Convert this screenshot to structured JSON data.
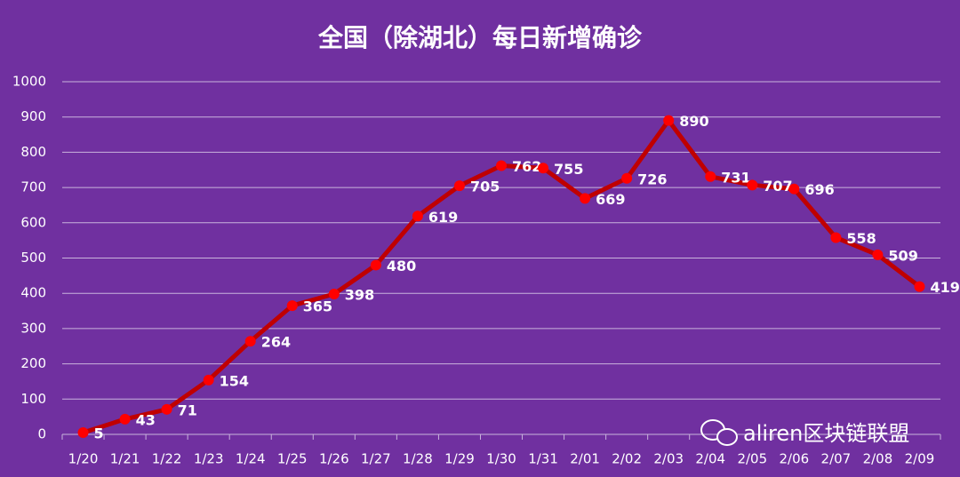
{
  "chart_data": {
    "type": "line",
    "title": "全国（除湖北）每日新增确诊",
    "categories": [
      "1/20",
      "1/21",
      "1/22",
      "1/23",
      "1/24",
      "1/25",
      "1/26",
      "1/27",
      "1/28",
      "1/29",
      "1/30",
      "1/31",
      "2/01",
      "2/02",
      "2/03",
      "2/04",
      "2/05",
      "2/06",
      "2/07",
      "2/08",
      "2/09"
    ],
    "values": [
      5,
      43,
      71,
      154,
      264,
      365,
      398,
      480,
      619,
      705,
      762,
      755,
      669,
      726,
      890,
      731,
      707,
      696,
      558,
      509,
      419
    ],
    "color": "#c00000",
    "marker_color": "#ff0000",
    "ylim": [
      0,
      1000
    ],
    "yticks": [
      0,
      100,
      200,
      300,
      400,
      500,
      600,
      700,
      800,
      900,
      1000
    ],
    "grid": true,
    "watermark": "aliren区块链联盟"
  }
}
